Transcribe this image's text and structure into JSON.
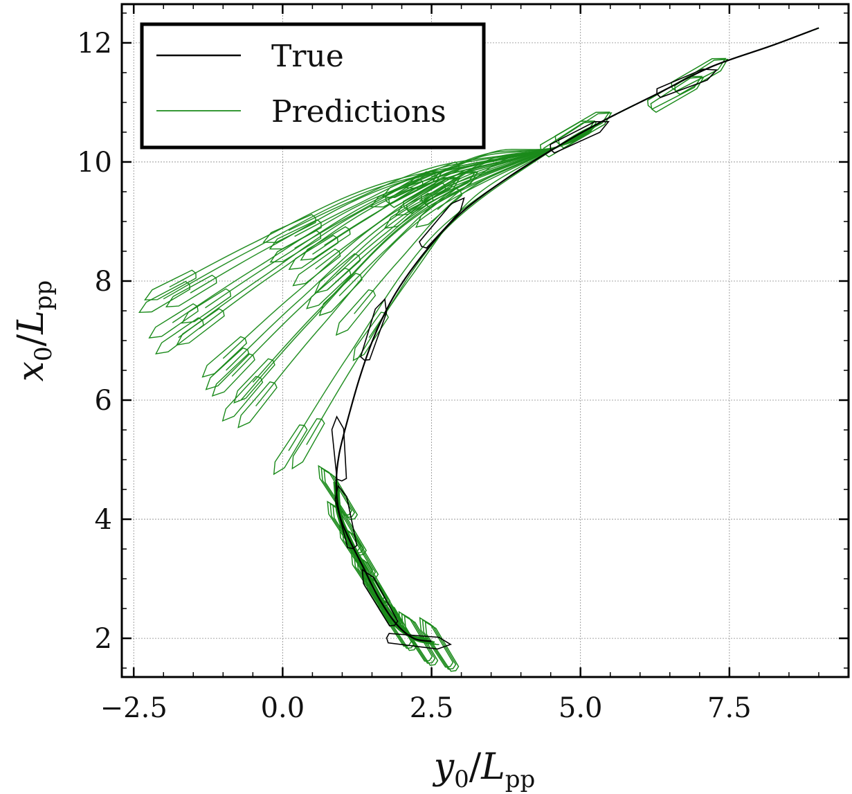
{
  "chart_data": {
    "type": "line",
    "title": "",
    "xlabel": "y_0/L_pp",
    "ylabel": "x_0/L_pp",
    "axis_titles": {
      "x": {
        "main": "y",
        "sub0": "0",
        "slash": "/",
        "main2": "L",
        "sub2": "pp"
      },
      "y": {
        "main": "x",
        "sub0": "0",
        "slash": "/",
        "main2": "L",
        "sub2": "pp"
      }
    },
    "xlim": [
      -2.7,
      9.5
    ],
    "ylim": [
      1.35,
      12.65
    ],
    "xticks": [
      -2.5,
      0.0,
      2.5,
      5.0,
      7.5
    ],
    "xtick_labels": [
      "−2.5",
      "0.0",
      "2.5",
      "5.0",
      "7.5"
    ],
    "yticks": [
      2,
      4,
      6,
      8,
      10,
      12
    ],
    "ytick_labels": [
      "2",
      "4",
      "6",
      "8",
      "10",
      "12"
    ],
    "grid": true,
    "legend": {
      "position": "top-left",
      "entries": [
        {
          "label": "True",
          "color": "#000000"
        },
        {
          "label": "Predictions",
          "color": "#1a8a1a"
        }
      ]
    },
    "colors": {
      "true": "#000000",
      "predictions": "#1a8a1a"
    },
    "true_path": [
      [
        2.5,
        1.95
      ],
      [
        2.2,
        2.0
      ],
      [
        1.9,
        2.25
      ],
      [
        1.6,
        2.7
      ],
      [
        1.35,
        3.2
      ],
      [
        1.1,
        3.7
      ],
      [
        0.95,
        4.1
      ],
      [
        0.9,
        4.6
      ],
      [
        0.95,
        5.1
      ],
      [
        1.1,
        5.7
      ],
      [
        1.3,
        6.4
      ],
      [
        1.55,
        7.1
      ],
      [
        1.9,
        7.8
      ],
      [
        2.4,
        8.5
      ],
      [
        3.0,
        9.15
      ],
      [
        3.8,
        9.75
      ],
      [
        4.6,
        10.25
      ],
      [
        5.4,
        10.7
      ],
      [
        6.3,
        11.15
      ],
      [
        7.2,
        11.6
      ],
      [
        8.2,
        11.95
      ],
      [
        9.0,
        12.25
      ]
    ],
    "prediction_endpoints": [
      [
        -2.0,
        7.7
      ],
      [
        -1.85,
        7.3
      ],
      [
        -1.55,
        7.8
      ],
      [
        -1.3,
        7.55
      ],
      [
        -1.9,
        7.9
      ],
      [
        -1.75,
        7.05
      ],
      [
        -1.4,
        7.2
      ],
      [
        -1.0,
        6.7
      ],
      [
        -0.85,
        6.4
      ],
      [
        -0.7,
        6.0
      ],
      [
        -0.5,
        6.3
      ],
      [
        -0.45,
        5.9
      ],
      [
        -0.95,
        6.5
      ],
      [
        0.1,
        5.15
      ],
      [
        0.4,
        5.25
      ],
      [
        0.1,
        8.85
      ],
      [
        0.2,
        8.55
      ],
      [
        0.5,
        8.45
      ],
      [
        0.7,
        8.6
      ],
      [
        0.55,
        8.2
      ],
      [
        0.9,
        8.1
      ],
      [
        0.75,
        7.85
      ],
      [
        0.95,
        7.75
      ],
      [
        1.2,
        7.45
      ],
      [
        1.45,
        7.05
      ],
      [
        0.2,
        8.75
      ],
      [
        1.9,
        9.45
      ],
      [
        2.1,
        9.6
      ],
      [
        2.3,
        9.35
      ],
      [
        2.5,
        9.75
      ],
      [
        2.6,
        9.2
      ],
      [
        2.1,
        9.15
      ]
    ]
  }
}
